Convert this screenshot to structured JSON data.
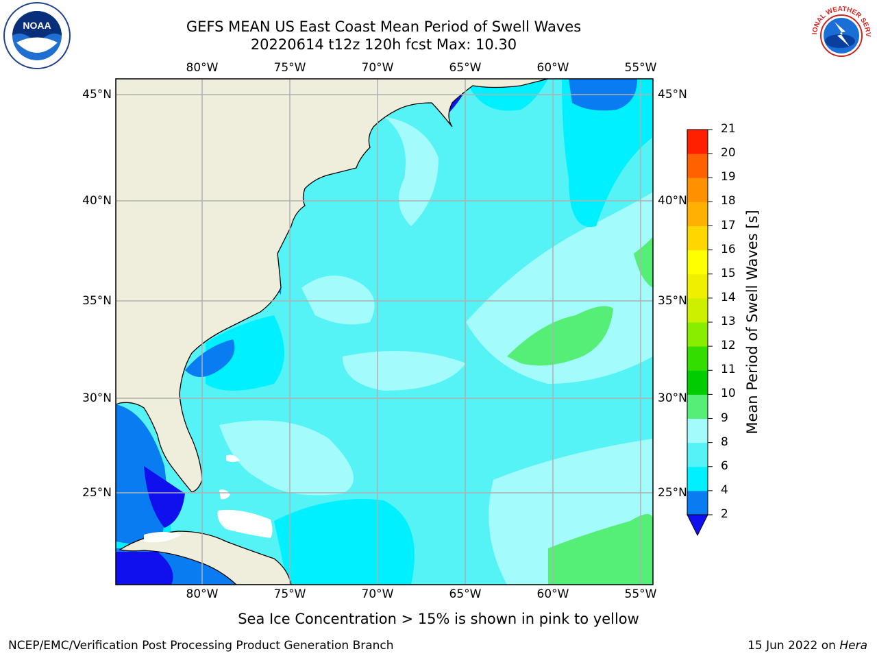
{
  "header": {
    "title_line1": "GEFS MEAN US East Coast Mean Period of Swell Waves",
    "title_line2": "20220614 t12z 120h fcst   Max: 10.30"
  },
  "logos": {
    "left": {
      "name": "noaa-logo",
      "text": "NOAA"
    },
    "right": {
      "name": "nws-logo",
      "text": "NATIONAL WEATHER SERVICE"
    }
  },
  "map": {
    "lon_labels_top": [
      "80°W",
      "75°W",
      "70°W",
      "65°W",
      "60°W",
      "55°W"
    ],
    "lon_labels_bottom": [
      "80°W",
      "75°W",
      "70°W",
      "65°W",
      "60°W",
      "55°W"
    ],
    "lat_labels_left": [
      "45°N",
      "40°N",
      "35°N",
      "30°N",
      "25°N"
    ],
    "lat_labels_right": [
      "45°N",
      "40°N",
      "35°N",
      "30°N",
      "25°N"
    ],
    "colors": {
      "land": "#efeedd",
      "ocean_6_8": "#55f3f5",
      "ocean_8_9": "#a3fbfb",
      "ocean_4_6": "#00f0ff",
      "ocean_2_4": "#0a7cf2",
      "ocean_lt2": "#1010ee",
      "ocean_9_10": "#55ee77",
      "grid": "#b0b0b0"
    }
  },
  "colorbar": {
    "label": "Mean Period of Swell Waves [s]",
    "ticks": [
      "2",
      "4",
      "6",
      "8",
      "9",
      "10",
      "11",
      "12",
      "13",
      "14",
      "15",
      "16",
      "17",
      "18",
      "19",
      "20",
      "21"
    ],
    "colors": [
      "#0a7cf2",
      "#00f0ff",
      "#55f3f5",
      "#a3fbfb",
      "#55ee77",
      "#00cc00",
      "#33dd00",
      "#88ee00",
      "#ccf000",
      "#eef000",
      "#ffff00",
      "#ffd700",
      "#ffb000",
      "#ff9000",
      "#ff6000",
      "#ff2000"
    ],
    "underflow_color": "#1010ee"
  },
  "footer": {
    "note": "Sea Ice Concentration > 15% is shown in pink to yellow",
    "left": "NCEP/EMC/Verification Post Processing Product Generation Branch",
    "right_prefix": "15 Jun 2022 on ",
    "right_machine": "Hera"
  }
}
